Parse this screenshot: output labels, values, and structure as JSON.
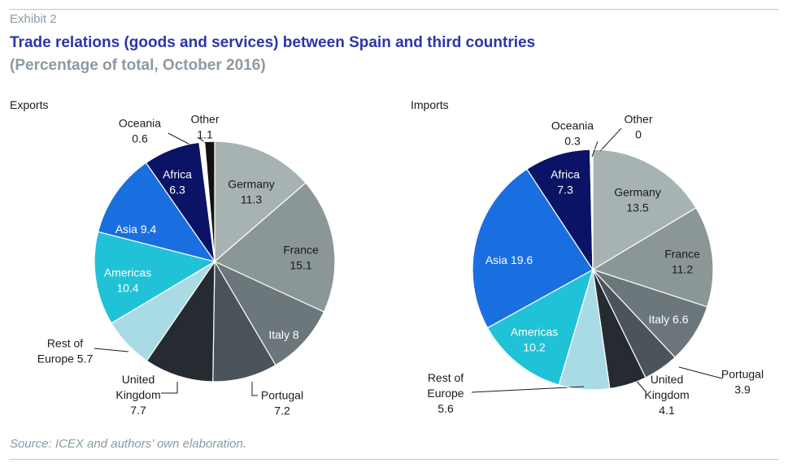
{
  "header": {
    "exhibit": "Exhibit 2",
    "title": "Trade relations (goods and services) between Spain and third countries",
    "subtitle": "(Percentage of total, October 2016)"
  },
  "footer": {
    "source": "Source: ICEX and authors’ own elaboration."
  },
  "colors": {
    "rule": "#b9c8c8",
    "title": "#2b35a8",
    "subtitle": "#8d9aa3",
    "Germany": "#a7b3b2",
    "France": "#8b9797",
    "Italy": "#6b777b",
    "Portugal": "#4b545a",
    "United Kingdom": "#262b32",
    "Rest of Europe": "#a9dbe5",
    "Americas": "#20c2d8",
    "Asia": "#1a6fe0",
    "Africa": "#0a1366",
    "Oceania": "#ffffff",
    "Other": "#111111"
  },
  "chart_data": [
    {
      "type": "pie",
      "title": "Exports",
      "slices": [
        {
          "name": "Germany",
          "value": 11.3,
          "label": [
            "Germany",
            "11.3"
          ]
        },
        {
          "name": "France",
          "value": 15.1,
          "label": [
            "France",
            "15.1"
          ]
        },
        {
          "name": "Italy",
          "value": 8,
          "label": [
            "Italy 8"
          ]
        },
        {
          "name": "Portugal",
          "value": 7.2,
          "label": [
            "Portugal",
            "7.2"
          ]
        },
        {
          "name": "United Kingdom",
          "value": 7.7,
          "label": [
            "United",
            "Kingdom",
            "7.7"
          ]
        },
        {
          "name": "Rest of Europe",
          "value": 5.7,
          "label": [
            "Rest of",
            "Europe 5.7"
          ]
        },
        {
          "name": "Americas",
          "value": 10.4,
          "label": [
            "Americas",
            "10.4"
          ]
        },
        {
          "name": "Asia",
          "value": 9.4,
          "label": [
            "Asia 9.4"
          ]
        },
        {
          "name": "Africa",
          "value": 6.3,
          "label": [
            "Africa",
            "6.3"
          ]
        },
        {
          "name": "Oceania",
          "value": 0.6,
          "label": [
            "Oceania",
            "0.6"
          ]
        },
        {
          "name": "Other",
          "value": 1.1,
          "label": [
            "Other",
            "1.1"
          ]
        }
      ]
    },
    {
      "type": "pie",
      "title": "Imports",
      "slices": [
        {
          "name": "Germany",
          "value": 13.5,
          "label": [
            "Germany",
            "13.5"
          ]
        },
        {
          "name": "France",
          "value": 11.2,
          "label": [
            "France",
            "11.2"
          ]
        },
        {
          "name": "Italy",
          "value": 6.6,
          "label": [
            "Italy 6.6"
          ]
        },
        {
          "name": "Portugal",
          "value": 3.9,
          "label": [
            "Portugal",
            "3.9"
          ]
        },
        {
          "name": "United Kingdom",
          "value": 4.1,
          "label": [
            "United",
            "Kingdom",
            "4.1"
          ]
        },
        {
          "name": "Rest of Europe",
          "value": 5.6,
          "label": [
            "Rest of",
            "Europe",
            "5.6"
          ]
        },
        {
          "name": "Americas",
          "value": 10.2,
          "label": [
            "Americas",
            "10.2"
          ]
        },
        {
          "name": "Asia",
          "value": 19.6,
          "label": [
            "Asia 19.6"
          ]
        },
        {
          "name": "Africa",
          "value": 7.3,
          "label": [
            "Africa",
            "7.3"
          ]
        },
        {
          "name": "Oceania",
          "value": 0.3,
          "label": [
            "Oceania",
            "0.3"
          ]
        },
        {
          "name": "Other",
          "value": 0,
          "label": [
            "Other",
            "0"
          ]
        }
      ]
    }
  ]
}
